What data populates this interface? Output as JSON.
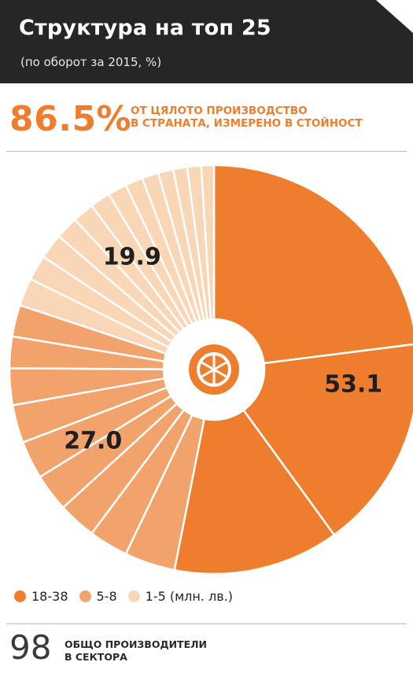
{
  "header": {
    "title": "Структура на топ 25",
    "subtitle": "(по оборот за 2015, %)"
  },
  "highlight": {
    "value": "86.5%",
    "line1": "ОТ ЦЯЛОТО ПРОИЗВОДСТВО",
    "line2": "В СТРАНАТА, ИЗМЕРЕНО В СТОЙНОСТ"
  },
  "chart_data": {
    "type": "pie",
    "variant": "donut",
    "center_icon": "orange-slice-icon",
    "groups": [
      {
        "name": "18-38",
        "value": 53.1,
        "label": "53.1",
        "color": "#ef7d2e",
        "segments": [
          23,
          17,
          13.1
        ]
      },
      {
        "name": "5-8",
        "value": 27.0,
        "label": "27.0",
        "color": "#f2a36b",
        "segments": [
          4,
          3.1,
          3,
          3,
          3,
          3,
          2.9,
          2.5,
          2.5
        ]
      },
      {
        "name": "1-5",
        "value": 19.9,
        "label": "19.9",
        "color": "#f9d6b6",
        "segments": [
          2.2,
          2,
          2,
          1.8,
          1.7,
          1.6,
          1.5,
          1.4,
          1.3,
          1.2,
          1.1,
          1.1,
          1
        ]
      }
    ]
  },
  "legend": {
    "items": [
      {
        "label": "18-38",
        "color": "#ef7d2e"
      },
      {
        "label": "5-8",
        "color": "#f2a36b"
      },
      {
        "label": "1-5 (млн. лв.)",
        "color": "#f9d6b6"
      }
    ]
  },
  "footer": {
    "count": "98",
    "line1": "ОБЩО ПРОИЗВОДИТЕЛИ",
    "line2": "В СЕКТОРА"
  }
}
